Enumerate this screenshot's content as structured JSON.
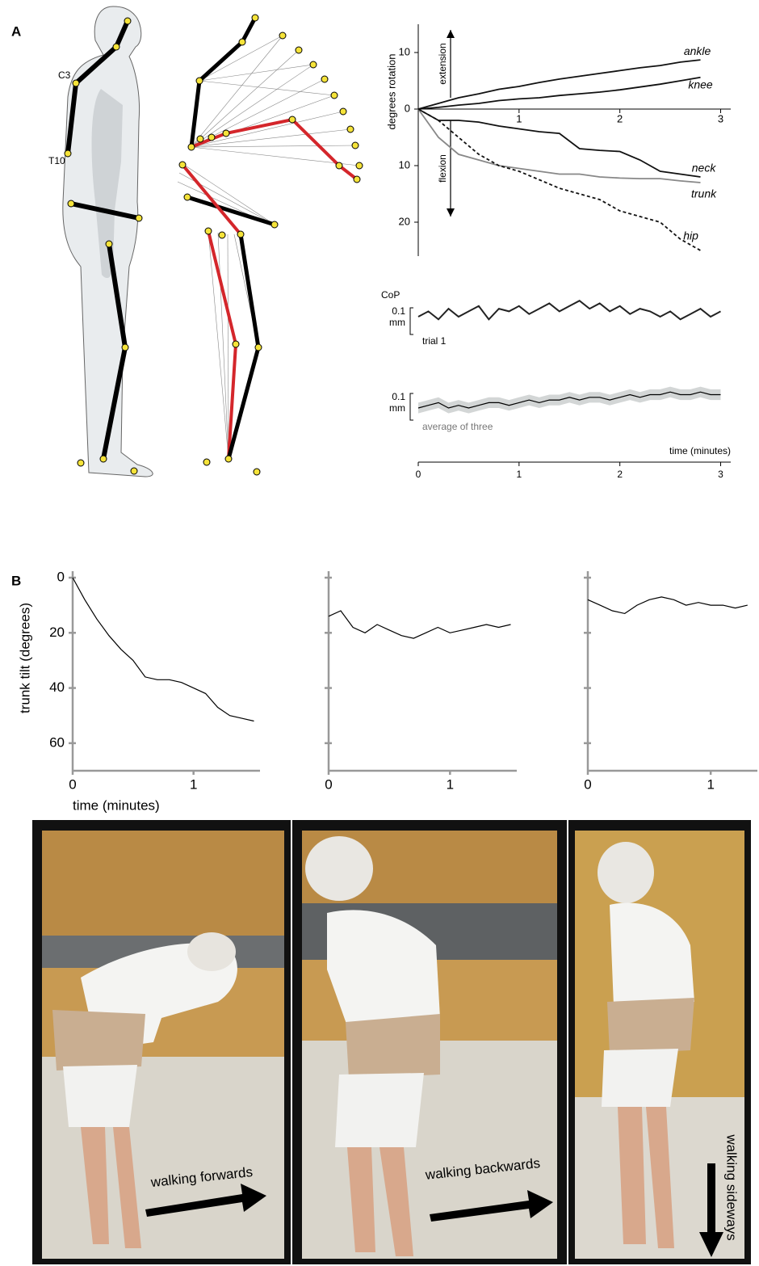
{
  "panel_labels": [
    "A",
    "B"
  ],
  "diagram": {
    "labels": [
      "C3",
      "T10"
    ]
  },
  "chart_data": [
    {
      "type": "line",
      "y_label": "degrees rotation",
      "annotations": [
        "extension",
        "flexion"
      ],
      "x": [
        0,
        0.2,
        0.4,
        0.6,
        0.8,
        1.0,
        1.2,
        1.4,
        1.6,
        1.8,
        2.0,
        2.2,
        2.4,
        2.6,
        2.8
      ],
      "series": [
        {
          "name": "ankle",
          "color": "#111111",
          "values": [
            0,
            1,
            2,
            2.7,
            3.5,
            4,
            4.7,
            5.3,
            5.8,
            6.3,
            6.8,
            7.3,
            7.7,
            8.3,
            8.7
          ]
        },
        {
          "name": "knee",
          "color": "#111111",
          "values": [
            0,
            0.3,
            0.7,
            1,
            1.5,
            1.8,
            2,
            2.4,
            2.7,
            3,
            3.4,
            3.9,
            4.4,
            5,
            5.6
          ]
        },
        {
          "name": "neck",
          "color": "#111111",
          "values": [
            0,
            -2,
            -2,
            -2.3,
            -3,
            -3.5,
            -4,
            -4.3,
            -7,
            -7.3,
            -7.5,
            -9,
            -11,
            -11.5,
            -12
          ]
        },
        {
          "name": "trunk",
          "color": "#888888",
          "values": [
            0,
            -5,
            -8,
            -9,
            -10,
            -10.5,
            -11,
            -11.5,
            -11.5,
            -12,
            -12.2,
            -12.3,
            -12.3,
            -12.7,
            -13
          ]
        },
        {
          "name": "hip",
          "color": "#111111",
          "dashed": true,
          "values": [
            0,
            -2,
            -5,
            -8,
            -10,
            -11,
            -12.5,
            -14,
            -15,
            -16,
            -18,
            -19,
            -20,
            -23,
            -25
          ]
        }
      ],
      "xlim": [
        0,
        3.1
      ],
      "xticks": [
        1,
        2,
        3
      ],
      "ylim": [
        -26,
        15
      ],
      "yticks": [
        10,
        0,
        {
          "value": -10,
          "label": "10"
        },
        {
          "value": -20,
          "label": "20"
        }
      ]
    },
    {
      "type": "trace",
      "title": "CoP",
      "x": [
        0,
        0.1,
        0.2,
        0.3,
        0.4,
        0.5,
        0.6,
        0.7,
        0.8,
        0.9,
        1.0,
        1.1,
        1.2,
        1.3,
        1.4,
        1.5,
        1.6,
        1.7,
        1.8,
        1.9,
        2.0,
        2.1,
        2.2,
        2.3,
        2.4,
        2.5,
        2.6,
        2.7,
        2.8,
        2.9,
        3.0
      ],
      "series": [
        {
          "name": "trial 1",
          "color": "#222222",
          "values": [
            0,
            0.02,
            -0.01,
            0.03,
            0,
            0.02,
            0.04,
            -0.01,
            0.03,
            0.02,
            0.04,
            0.01,
            0.03,
            0.05,
            0.02,
            0.04,
            0.06,
            0.03,
            0.05,
            0.02,
            0.04,
            0.01,
            0.03,
            0.02,
            0,
            0.02,
            -0.01,
            0.01,
            0.03,
            0,
            0.02
          ]
        },
        {
          "name": "average of three",
          "color": "#000000",
          "band_color": "#d3d6d6",
          "values": [
            0,
            0.01,
            0.02,
            0,
            0.01,
            0,
            0.01,
            0.02,
            0.02,
            0.01,
            0.02,
            0.03,
            0.02,
            0.03,
            0.03,
            0.04,
            0.03,
            0.04,
            0.04,
            0.03,
            0.04,
            0.05,
            0.04,
            0.05,
            0.05,
            0.06,
            0.05,
            0.05,
            0.06,
            0.05,
            0.05
          ],
          "error": [
            0.02,
            0.02,
            0.02,
            0.02,
            0.02,
            0.02,
            0.02,
            0.02,
            0.02,
            0.02,
            0.02,
            0.02,
            0.02,
            0.02,
            0.02,
            0.02,
            0.02,
            0.02,
            0.02,
            0.02,
            0.02,
            0.02,
            0.02,
            0.02,
            0.02,
            0.02,
            0.02,
            0.02,
            0.02,
            0.02,
            0.02
          ]
        }
      ],
      "scale_bar": {
        "value": 0.1,
        "label": [
          "0.1",
          "mm"
        ]
      },
      "x_label": "time (minutes)",
      "xlim": [
        0,
        3.1
      ],
      "xticks": [
        0,
        1,
        2,
        3
      ]
    },
    {
      "type": "line",
      "y_inverted": true,
      "axis_color": "#999999",
      "y_label": "trunk tilt (degrees)",
      "x_label": "time (minutes)",
      "x": [
        0,
        0.1,
        0.2,
        0.3,
        0.4,
        0.5,
        0.6,
        0.7,
        0.8,
        0.9,
        1.0,
        1.1,
        1.2,
        1.3,
        1.4,
        1.5
      ],
      "series": [
        {
          "color": "#000000",
          "values": [
            0,
            8,
            15,
            21,
            26,
            30,
            36,
            37,
            37,
            38,
            40,
            42,
            47,
            50,
            51,
            52
          ]
        }
      ],
      "xlim": [
        0,
        1.55
      ],
      "xticks": [
        0,
        1
      ],
      "ylim": [
        0,
        70
      ],
      "yticks": [
        0,
        20,
        40,
        60
      ],
      "show_ytick_labels": true
    },
    {
      "type": "line",
      "y_inverted": true,
      "axis_color": "#999999",
      "x": [
        0,
        0.1,
        0.2,
        0.3,
        0.4,
        0.5,
        0.6,
        0.7,
        0.8,
        0.9,
        1.0,
        1.1,
        1.2,
        1.3,
        1.4,
        1.5
      ],
      "series": [
        {
          "color": "#000000",
          "values": [
            14,
            12,
            18,
            20,
            17,
            19,
            21,
            22,
            20,
            18,
            20,
            19,
            18,
            17,
            18,
            17
          ]
        }
      ],
      "xlim": [
        0,
        1.55
      ],
      "xticks": [
        0,
        1
      ],
      "ylim": [
        0,
        70
      ],
      "yticks": [
        0,
        20,
        40,
        60
      ],
      "show_ytick_labels": false
    },
    {
      "type": "line",
      "y_inverted": true,
      "axis_color": "#999999",
      "x": [
        0,
        0.1,
        0.2,
        0.3,
        0.4,
        0.5,
        0.6,
        0.7,
        0.8,
        0.9,
        1.0,
        1.1,
        1.2,
        1.3
      ],
      "series": [
        {
          "color": "#000000",
          "values": [
            8,
            10,
            12,
            13,
            10,
            8,
            7,
            8,
            10,
            9,
            10,
            10,
            11,
            10
          ]
        }
      ],
      "xlim": [
        0,
        1.38
      ],
      "xticks": [
        0,
        1
      ],
      "ylim": [
        0,
        70
      ],
      "yticks": [
        0,
        20,
        40,
        60
      ],
      "show_ytick_labels": false
    }
  ],
  "photos": [
    {
      "caption": "walking forwards"
    },
    {
      "caption": "walking backwards"
    },
    {
      "caption": "walking sideways"
    }
  ]
}
